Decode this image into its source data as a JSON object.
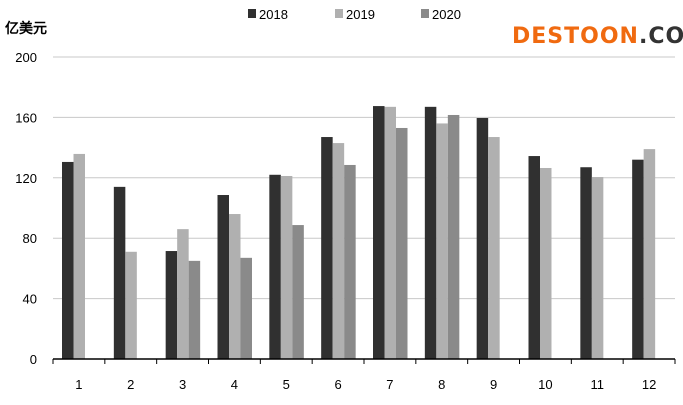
{
  "chart_data": {
    "type": "bar",
    "title": "",
    "ylabel": "亿美元",
    "xlabel": "",
    "ylim": [
      0,
      200
    ],
    "yticks": [
      "0",
      "40",
      "80",
      "120",
      "160",
      "200"
    ],
    "grid": true,
    "legend_position": "top-center",
    "categories": [
      "1",
      "2",
      "3",
      "4",
      "5",
      "6",
      "7",
      "8",
      "9",
      "10",
      "11",
      "12"
    ],
    "series": [
      {
        "name": "2018",
        "color": "#303030",
        "values": [
          130.5,
          114,
          71.5,
          108.6,
          122,
          147,
          167.5,
          167,
          159.6,
          134.4,
          127,
          132
        ]
      },
      {
        "name": "2019",
        "color": "#b0b0b0",
        "values": [
          135.8,
          71,
          86,
          96,
          121.2,
          143,
          167,
          156,
          147,
          126.5,
          120.5,
          139
        ]
      },
      {
        "name": "2020",
        "color": "#8a8a8a",
        "values": [
          null,
          null,
          65,
          67,
          88.7,
          128.5,
          153,
          161.6,
          null,
          null,
          null,
          null
        ]
      }
    ]
  },
  "watermark": {
    "part1": "DESTOON",
    "part2": ".COM"
  }
}
